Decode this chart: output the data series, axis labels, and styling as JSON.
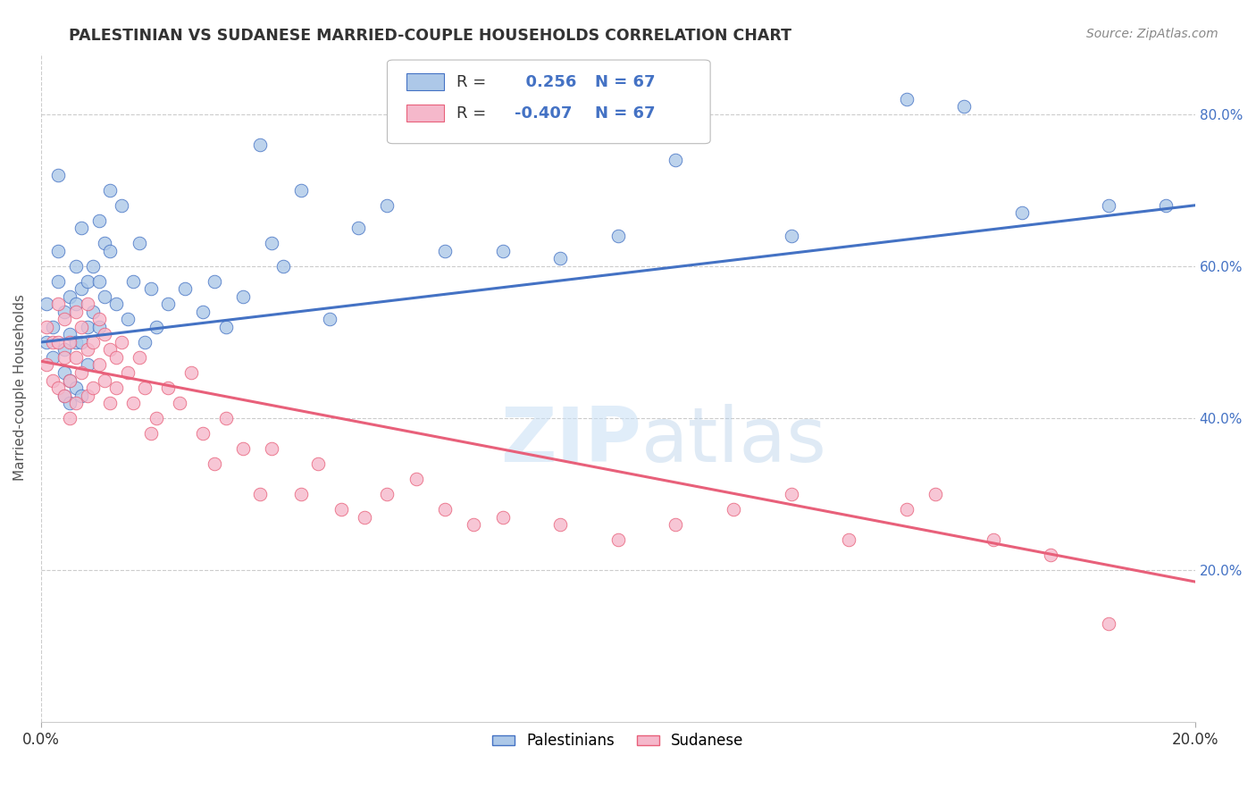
{
  "title": "PALESTINIAN VS SUDANESE MARRIED-COUPLE HOUSEHOLDS CORRELATION CHART",
  "source": "Source: ZipAtlas.com",
  "ylabel": "Married-couple Households",
  "xmin": 0.0,
  "xmax": 0.2,
  "ymin": 0.0,
  "ymax": 0.88,
  "yticks": [
    0.2,
    0.4,
    0.6,
    0.8
  ],
  "ytick_labels": [
    "20.0%",
    "40.0%",
    "60.0%",
    "80.0%"
  ],
  "xticks": [
    0.0,
    0.2
  ],
  "xtick_labels": [
    "0.0%",
    "20.0%"
  ],
  "pal_r": 0.256,
  "sud_r": -0.407,
  "n": 67,
  "pal_color": "#adc8e8",
  "sud_color": "#f5b8cb",
  "pal_line_color": "#4472c4",
  "sud_line_color": "#e8607a",
  "background_color": "#ffffff",
  "watermark_zip": "ZIP",
  "watermark_atlas": "atlas",
  "palestinians_x": [
    0.001,
    0.001,
    0.002,
    0.002,
    0.003,
    0.003,
    0.003,
    0.004,
    0.004,
    0.004,
    0.004,
    0.005,
    0.005,
    0.005,
    0.005,
    0.006,
    0.006,
    0.006,
    0.006,
    0.007,
    0.007,
    0.007,
    0.007,
    0.008,
    0.008,
    0.008,
    0.009,
    0.009,
    0.01,
    0.01,
    0.01,
    0.011,
    0.011,
    0.012,
    0.012,
    0.013,
    0.014,
    0.015,
    0.016,
    0.017,
    0.018,
    0.019,
    0.02,
    0.022,
    0.025,
    0.028,
    0.03,
    0.032,
    0.035,
    0.038,
    0.04,
    0.042,
    0.045,
    0.05,
    0.055,
    0.06,
    0.07,
    0.08,
    0.09,
    0.1,
    0.11,
    0.13,
    0.15,
    0.16,
    0.17,
    0.185,
    0.195
  ],
  "palestinians_y": [
    0.5,
    0.55,
    0.52,
    0.48,
    0.58,
    0.62,
    0.72,
    0.54,
    0.49,
    0.46,
    0.43,
    0.56,
    0.51,
    0.45,
    0.42,
    0.6,
    0.55,
    0.5,
    0.44,
    0.65,
    0.57,
    0.5,
    0.43,
    0.58,
    0.52,
    0.47,
    0.6,
    0.54,
    0.66,
    0.58,
    0.52,
    0.63,
    0.56,
    0.7,
    0.62,
    0.55,
    0.68,
    0.53,
    0.58,
    0.63,
    0.5,
    0.57,
    0.52,
    0.55,
    0.57,
    0.54,
    0.58,
    0.52,
    0.56,
    0.76,
    0.63,
    0.6,
    0.7,
    0.53,
    0.65,
    0.68,
    0.62,
    0.62,
    0.61,
    0.64,
    0.74,
    0.64,
    0.82,
    0.81,
    0.67,
    0.68,
    0.68
  ],
  "sudanese_x": [
    0.001,
    0.001,
    0.002,
    0.002,
    0.003,
    0.003,
    0.003,
    0.004,
    0.004,
    0.004,
    0.005,
    0.005,
    0.005,
    0.006,
    0.006,
    0.006,
    0.007,
    0.007,
    0.008,
    0.008,
    0.008,
    0.009,
    0.009,
    0.01,
    0.01,
    0.011,
    0.011,
    0.012,
    0.012,
    0.013,
    0.013,
    0.014,
    0.015,
    0.016,
    0.017,
    0.018,
    0.019,
    0.02,
    0.022,
    0.024,
    0.026,
    0.028,
    0.03,
    0.032,
    0.035,
    0.038,
    0.04,
    0.045,
    0.048,
    0.052,
    0.056,
    0.06,
    0.065,
    0.07,
    0.075,
    0.08,
    0.09,
    0.1,
    0.11,
    0.12,
    0.13,
    0.14,
    0.15,
    0.155,
    0.165,
    0.175,
    0.185
  ],
  "sudanese_y": [
    0.47,
    0.52,
    0.5,
    0.45,
    0.55,
    0.5,
    0.44,
    0.53,
    0.48,
    0.43,
    0.5,
    0.45,
    0.4,
    0.54,
    0.48,
    0.42,
    0.52,
    0.46,
    0.55,
    0.49,
    0.43,
    0.5,
    0.44,
    0.53,
    0.47,
    0.51,
    0.45,
    0.49,
    0.42,
    0.48,
    0.44,
    0.5,
    0.46,
    0.42,
    0.48,
    0.44,
    0.38,
    0.4,
    0.44,
    0.42,
    0.46,
    0.38,
    0.34,
    0.4,
    0.36,
    0.3,
    0.36,
    0.3,
    0.34,
    0.28,
    0.27,
    0.3,
    0.32,
    0.28,
    0.26,
    0.27,
    0.26,
    0.24,
    0.26,
    0.28,
    0.3,
    0.24,
    0.28,
    0.3,
    0.24,
    0.22,
    0.13
  ]
}
